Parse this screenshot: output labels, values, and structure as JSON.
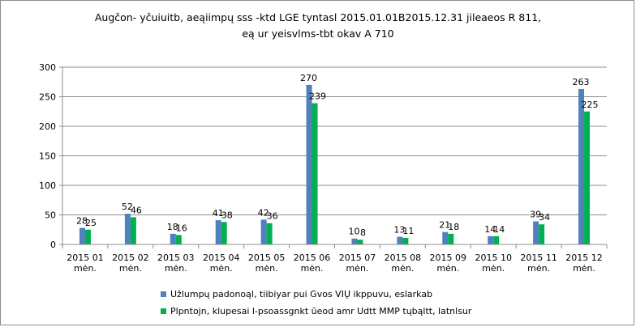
{
  "chart_data": {
    "type": "bar",
    "title_line1": "Augčon- yčuiuitb, aeąiimpų sss -ktd LGE tyntasl 2015.01.01B2015.12.31  jileaeos R 811,",
    "title_line2": "eą ur yeisvlms-tbt okav A 710",
    "categories": [
      {
        "line1": "2015 01",
        "line2": "mėn."
      },
      {
        "line1": "2015 02",
        "line2": "mėn."
      },
      {
        "line1": "2015 03",
        "line2": "mėn."
      },
      {
        "line1": "2015 04",
        "line2": "mėn."
      },
      {
        "line1": "2015 05",
        "line2": "mėn."
      },
      {
        "line1": "2015 06",
        "line2": "mėn."
      },
      {
        "line1": "2015 07",
        "line2": "mėn."
      },
      {
        "line1": "2015 08",
        "line2": "mėn."
      },
      {
        "line1": "2015 09",
        "line2": "mėn."
      },
      {
        "line1": "2015 10",
        "line2": "mėn."
      },
      {
        "line1": "2015 11",
        "line2": "mėn."
      },
      {
        "line1": "2015 12",
        "line2": "mėn."
      }
    ],
    "series": [
      {
        "name": "Užlumpų padonoąl, tiibiyar pui Gvos VIŲ ikppuvu, eslarkab",
        "color": "#4f81bd",
        "values": [
          28,
          52,
          18,
          41,
          42,
          270,
          10,
          13,
          21,
          14,
          39,
          263
        ]
      },
      {
        "name": "Plpntojn, klupesai l-psoassgnkt ūeod amr Udtt MMP tųbąltt, latnlsur",
        "color": "#00b050",
        "values": [
          25,
          46,
          16,
          38,
          36,
          239,
          8,
          11,
          18,
          14,
          34,
          225
        ]
      }
    ],
    "yticks": [
      0,
      50,
      100,
      150,
      200,
      250,
      300
    ],
    "ylim": [
      0,
      300
    ],
    "grid": true,
    "legend_position": "bottom"
  }
}
